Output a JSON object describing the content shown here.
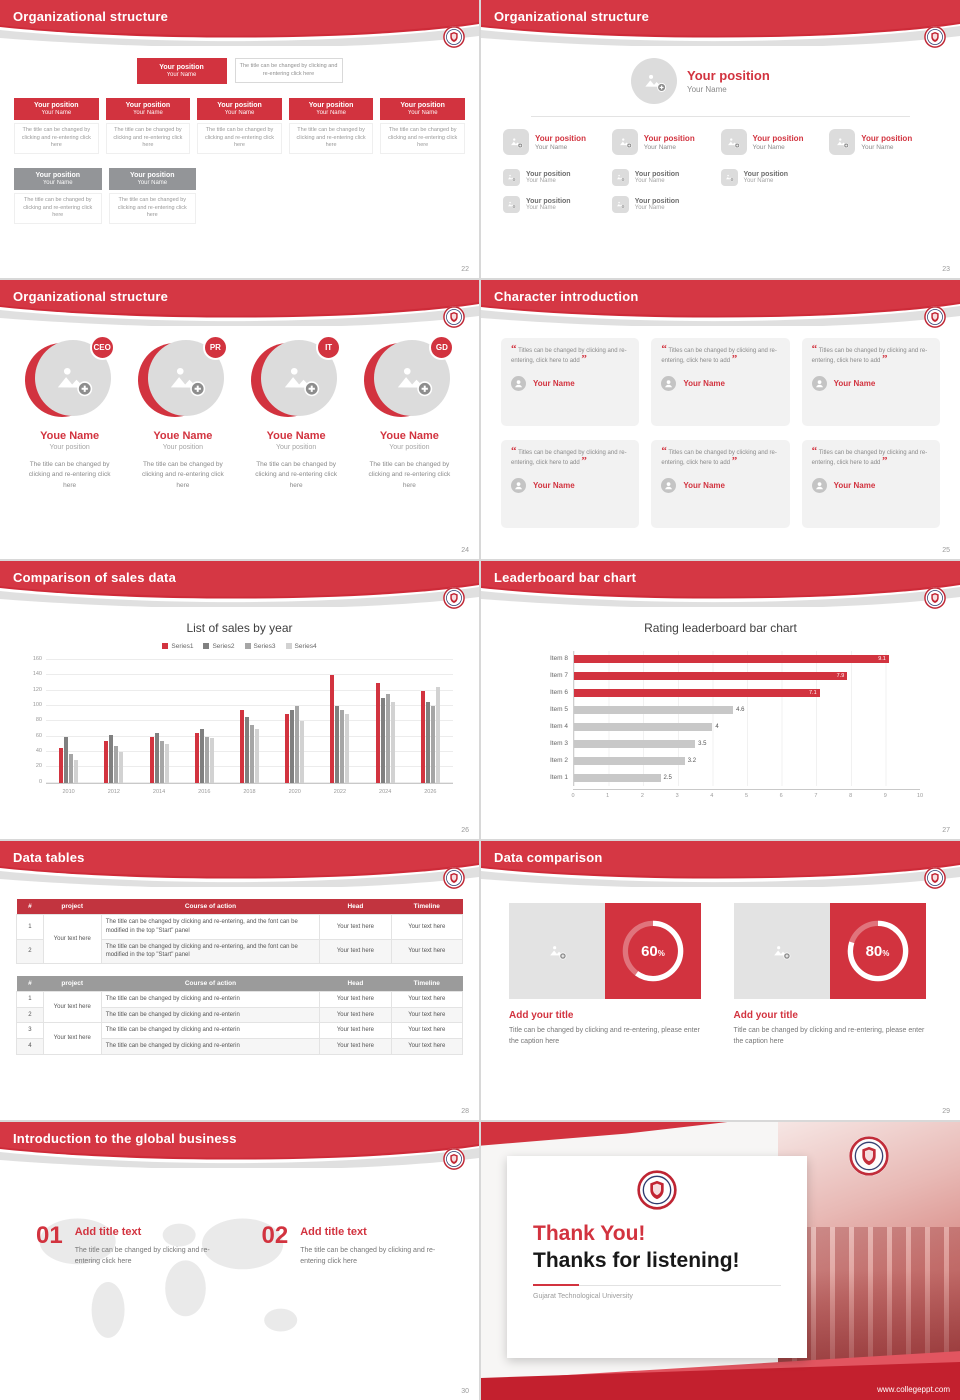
{
  "deck": {
    "accent": "#d2333f",
    "pct_symbol": "%"
  },
  "slides": {
    "s22": {
      "title": "Organizational structure",
      "page": "22",
      "position": "Your position",
      "name": "Your Name",
      "desc": "The title can be changed by clicking and re-entering click here"
    },
    "s23": {
      "title": "Organizational structure",
      "page": "23",
      "position": "Your position",
      "name": "Your Name"
    },
    "s24": {
      "title": "Organizational structure",
      "page": "24",
      "badges": [
        "CEO",
        "PR",
        "IT",
        "GD"
      ],
      "name": "Youe Name",
      "position": "Your position",
      "desc": "The title can be changed by clicking and re-entering click here"
    },
    "s25": {
      "title": "Character introduction",
      "page": "25",
      "quote_open": "“",
      "quote_close": "”",
      "quote": "Titles can be changed by clicking and re-entering, click here to add",
      "name": "Your Name"
    },
    "s26": {
      "title": "Comparison of sales data",
      "page": "26",
      "chart_data": {
        "type": "bar",
        "title": "List of sales by year",
        "categories": [
          "2010",
          "2012",
          "2014",
          "2016",
          "2018",
          "2020",
          "2022",
          "2024",
          "2026"
        ],
        "series": [
          {
            "name": "Series1",
            "color": "#d2333f",
            "values": [
              45,
              55,
              60,
              65,
              95,
              90,
              140,
              130,
              120
            ]
          },
          {
            "name": "Series2",
            "color": "#808080",
            "values": [
              60,
              62,
              65,
              70,
              85,
              95,
              100,
              110,
              105
            ]
          },
          {
            "name": "Series3",
            "color": "#a6a6a6",
            "values": [
              38,
              48,
              55,
              60,
              75,
              100,
              95,
              115,
              100
            ]
          },
          {
            "name": "Series4",
            "color": "#d2d2d2",
            "values": [
              30,
              40,
              50,
              58,
              70,
              80,
              90,
              105,
              125
            ]
          }
        ],
        "ylim": [
          0,
          160
        ],
        "yticks": [
          0,
          20,
          40,
          60,
          80,
          100,
          120,
          140,
          160
        ],
        "legend_position": "top",
        "grid": true
      }
    },
    "s27": {
      "title": "Leaderboard bar chart",
      "page": "27",
      "chart_data": {
        "type": "bar-horizontal",
        "title": "Rating leaderboard bar chart",
        "bars": [
          {
            "label": "Item 8",
            "value": 9.1,
            "color": "#d2333f"
          },
          {
            "label": "Item 7",
            "value": 7.9,
            "color": "#d2333f"
          },
          {
            "label": "Item 6",
            "value": 7.1,
            "color": "#d2333f"
          },
          {
            "label": "Item 5",
            "value": 4.6,
            "color": "#c8c8c8"
          },
          {
            "label": "Item 4",
            "value": 4,
            "color": "#c8c8c8"
          },
          {
            "label": "Item 3",
            "value": 3.5,
            "color": "#c8c8c8"
          },
          {
            "label": "Item 2",
            "value": 3.2,
            "color": "#c8c8c8"
          },
          {
            "label": "Item 1",
            "value": 2.5,
            "color": "#c8c8c8"
          }
        ],
        "xlim": [
          0,
          10
        ],
        "xticks": [
          0,
          1,
          2,
          3,
          4,
          5,
          6,
          7,
          8,
          9,
          10
        ],
        "grid": true
      }
    },
    "s28": {
      "title": "Data tables",
      "page": "28",
      "table1": {
        "headers": [
          "#",
          "project",
          "Course of action",
          "Head",
          "Timeline"
        ],
        "project": "Your text here",
        "rows": [
          {
            "num": "1",
            "course": "The title can be changed by clicking and re-entering, and the font can be modified in the top \"Start\" panel",
            "head": "Your text here",
            "timeline": "Your text here"
          },
          {
            "num": "2",
            "course": "The title can be changed by clicking and re-entering, and the font can be modified in the top \"Start\" panel",
            "head": "Your text here",
            "timeline": "Your text here"
          }
        ]
      },
      "table2": {
        "headers": [
          "#",
          "project",
          "Course of action",
          "Head",
          "Timeline"
        ],
        "project": "Your text here",
        "rows": [
          {
            "num": "1",
            "course": "The title can be changed by clicking and re-enterin",
            "head": "Your text here",
            "timeline": "Your text here"
          },
          {
            "num": "2",
            "course": "The title can be changed by clicking and re-enterin",
            "head": "Your text here",
            "timeline": "Your text here"
          },
          {
            "num": "3",
            "course": "The title can be changed by clicking and re-enterin",
            "head": "Your text here",
            "timeline": "Your text here"
          },
          {
            "num": "4",
            "course": "The title can be changed by clicking and re-enterin",
            "head": "Your text here",
            "timeline": "Your text here"
          }
        ]
      }
    },
    "s29": {
      "title": "Data comparison",
      "page": "29",
      "cards": [
        {
          "percent": 60,
          "title": "Add your title",
          "caption": "Title can be changed by clicking and re-entering, please enter the caption here"
        },
        {
          "percent": 80,
          "title": "Add your title",
          "caption": "Title can be changed by clicking and re-entering, please enter the caption here"
        }
      ]
    },
    "s30": {
      "title": "Introduction to the global business",
      "page": "30",
      "items": [
        {
          "num": "01",
          "title": "Add title text",
          "desc": "The title can be changed by clicking and re-entering click here"
        },
        {
          "num": "02",
          "title": "Add title text",
          "desc": "The title can be changed by clicking and re-entering click here"
        }
      ]
    },
    "ty": {
      "thank": "Thank You!",
      "subtitle": "Thanks for listening!",
      "org": "Gujarat Technological University",
      "website": "www.collegeppt.com"
    }
  }
}
